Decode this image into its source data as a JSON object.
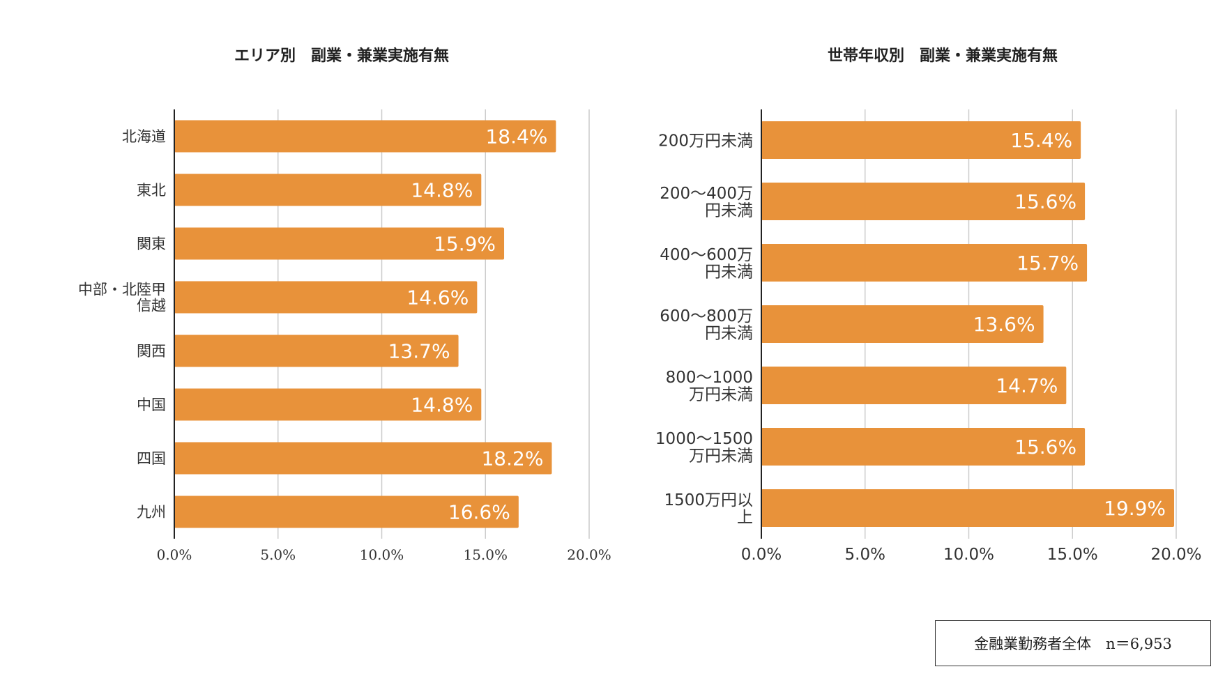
{
  "chart_data": [
    {
      "type": "bar",
      "orientation": "horizontal",
      "title": "エリア別　副業・兼業実施有無",
      "categories": [
        "北海道",
        "東北",
        "関東",
        "中部・北陸甲信越",
        "関西",
        "中国",
        "四国",
        "九州"
      ],
      "category_lines": [
        [
          "北海道"
        ],
        [
          "東北"
        ],
        [
          "関東"
        ],
        [
          "中部・北陸甲",
          "信越"
        ],
        [
          "関西"
        ],
        [
          "中国"
        ],
        [
          "四国"
        ],
        [
          "九州"
        ]
      ],
      "values": [
        18.4,
        14.8,
        15.9,
        14.6,
        13.7,
        14.8,
        18.2,
        16.6
      ],
      "value_labels": [
        "18.4%",
        "14.8%",
        "15.9%",
        "14.6%",
        "13.7%",
        "14.8%",
        "18.2%",
        "16.6%"
      ],
      "xlim": [
        0,
        20
      ],
      "xticks": [
        0,
        5,
        10,
        15,
        20
      ],
      "xtick_labels": [
        "0.0%",
        "5.0%",
        "10.0%",
        "15.0%",
        "20.0%"
      ],
      "xlabel": "",
      "ylabel": "",
      "grid": true,
      "color": "#E8923A"
    },
    {
      "type": "bar",
      "orientation": "horizontal",
      "title": "世帯年収別　副業・兼業実施有無",
      "categories": [
        "200万円未満",
        "200〜400万円未満",
        "400〜600万円未満",
        "600〜800万円未満",
        "800〜1000万円未満",
        "1000〜1500万円未満",
        "1500万円以上"
      ],
      "category_lines": [
        [
          "200万円未満"
        ],
        [
          "200〜400万",
          "円未満"
        ],
        [
          "400〜600万",
          "円未満"
        ],
        [
          "600〜800万",
          "円未満"
        ],
        [
          "800〜1000",
          "万円未満"
        ],
        [
          "1000〜1500",
          "万円未満"
        ],
        [
          "1500万円以",
          "上"
        ]
      ],
      "values": [
        15.4,
        15.6,
        15.7,
        13.6,
        14.7,
        15.6,
        19.9
      ],
      "value_labels": [
        "15.4%",
        "15.6%",
        "15.7%",
        "13.6%",
        "14.7%",
        "15.6%",
        "19.9%"
      ],
      "xlim": [
        0,
        20
      ],
      "xticks": [
        0,
        5,
        10,
        15,
        20
      ],
      "xtick_labels": [
        "0.0%",
        "5.0%",
        "10.0%",
        "15.0%",
        "20.0%"
      ],
      "xlabel": "",
      "ylabel": "",
      "grid": true,
      "color": "#E8923A"
    }
  ],
  "note": "金融業勤務者全体　n＝6,953"
}
